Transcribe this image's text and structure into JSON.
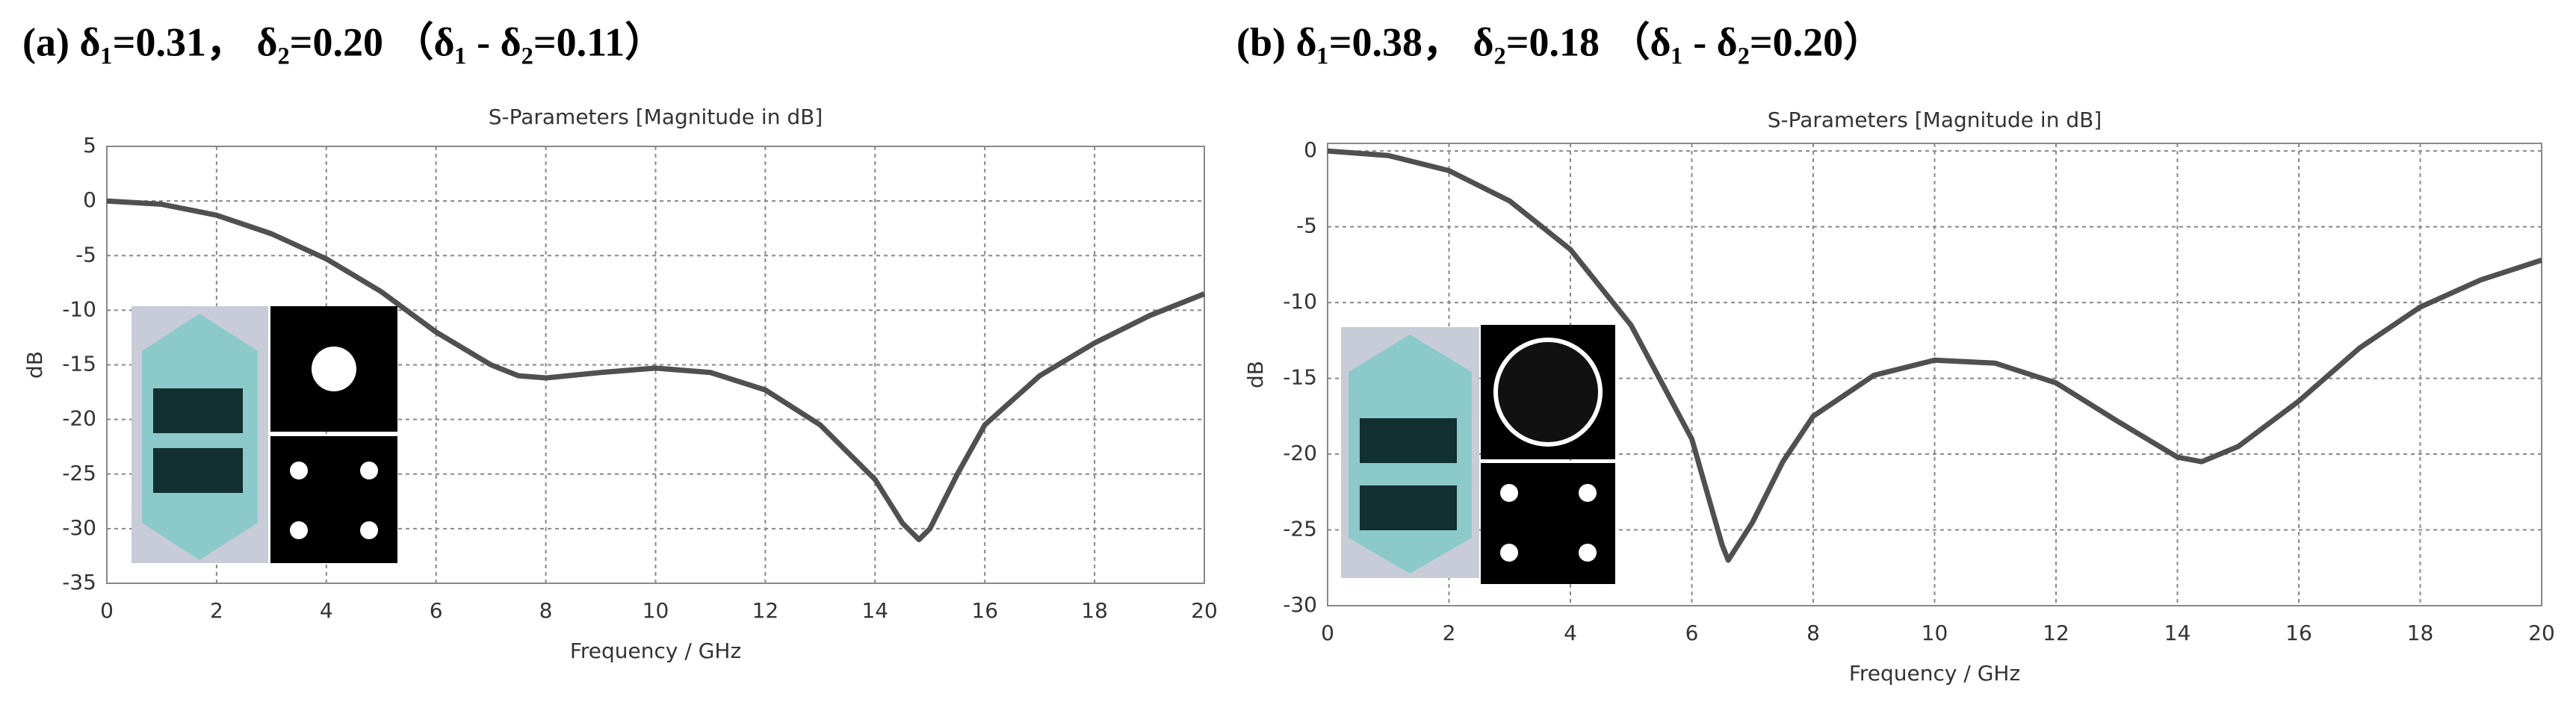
{
  "chart_data": [
    {
      "type": "line",
      "heading": "(a) δ₁=0.31，  δ₂=0.20 （δ₁ - δ₂=0.11）",
      "title": "S-Parameters [Magnitude in dB]",
      "x_label": "Frequency / GHz",
      "y_label": "dB",
      "grid": true,
      "xlim": [
        0,
        20
      ],
      "xticks": [
        0,
        2,
        4,
        6,
        8,
        10,
        12,
        14,
        16,
        18,
        20
      ],
      "ylim": [
        -35,
        5
      ],
      "yticks": [
        -35,
        -30,
        -25,
        -20,
        -15,
        -10,
        -5,
        0,
        5
      ],
      "x": [
        0,
        1,
        2,
        3,
        4,
        5,
        6,
        7,
        7.5,
        8,
        9,
        10,
        11,
        12,
        13,
        14,
        14.5,
        14.8,
        15,
        15.5,
        16,
        17,
        18,
        19,
        20
      ],
      "series": [
        {
          "color": "#505050",
          "values": [
            0,
            -0.3,
            -1.3,
            -3,
            -5.3,
            -8.3,
            -12,
            -15,
            -16,
            -16.2,
            -15.7,
            -15.3,
            -15.7,
            -17.3,
            -20.5,
            -25.5,
            -29.5,
            -31,
            -30,
            -25,
            -20.5,
            -16,
            -13,
            -10.5,
            -8.5
          ]
        }
      ]
    },
    {
      "type": "line",
      "heading": "(b) δ₁=0.38，  δ₂=0.18 （δ₁ - δ₂=0.20）",
      "title": "S-Parameters [Magnitude in dB]",
      "x_label": "Frequency / GHz",
      "y_label": "dB",
      "grid": true,
      "xlim": [
        0,
        20
      ],
      "xticks": [
        0,
        2,
        4,
        6,
        8,
        10,
        12,
        14,
        16,
        18,
        20
      ],
      "ylim": [
        -30,
        0.5
      ],
      "yticks": [
        -30,
        -25,
        -20,
        -15,
        -10,
        -5,
        0
      ],
      "x": [
        0,
        1,
        2,
        3,
        4,
        5,
        6,
        6.5,
        6.6,
        7,
        7.5,
        8,
        9,
        10,
        11,
        12,
        13,
        14,
        14.4,
        15,
        16,
        17,
        18,
        19,
        20
      ],
      "series": [
        {
          "color": "#505050",
          "values": [
            0,
            -0.3,
            -1.3,
            -3.3,
            -6.5,
            -11.5,
            -19,
            -26,
            -27,
            -24.5,
            -20.5,
            -17.5,
            -14.8,
            -13.8,
            -14,
            -15.3,
            -17.8,
            -20.2,
            -20.5,
            -19.5,
            -16.5,
            -13,
            -10.3,
            -8.5,
            -7.2
          ]
        }
      ]
    }
  ]
}
